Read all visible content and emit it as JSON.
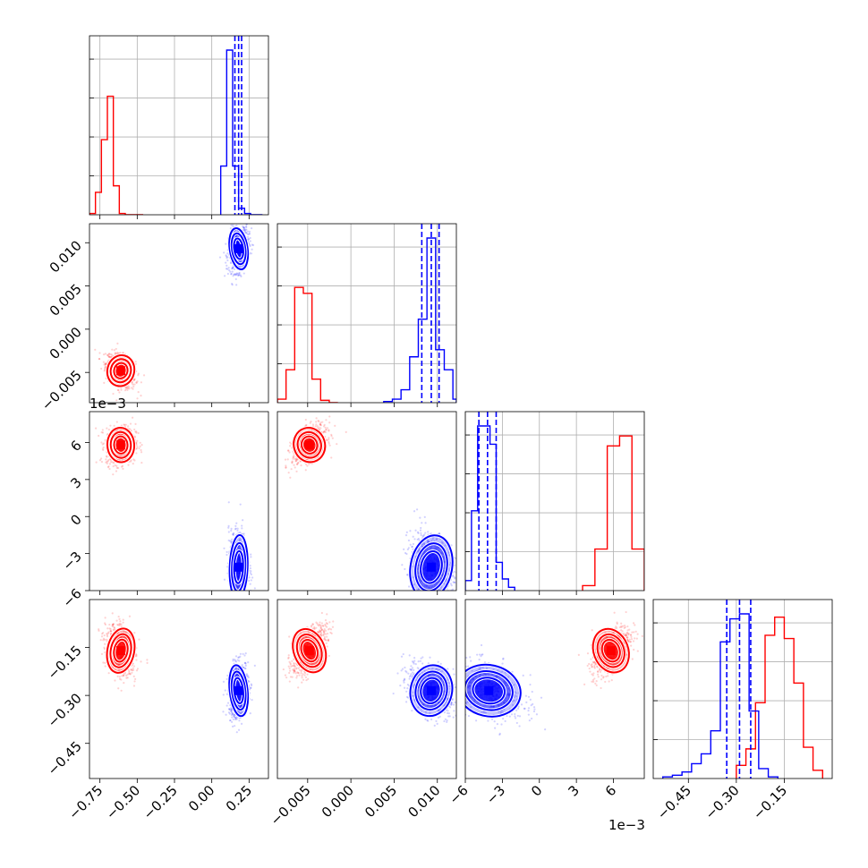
{
  "chart_data": {
    "type": "corner",
    "parameters": [
      {
        "range": [
          -0.82,
          0.38
        ],
        "ticks": [
          -0.75,
          -0.5,
          -0.25,
          0.0,
          0.25
        ],
        "labels": [
          "−0.75",
          "−0.50",
          "−0.25",
          "0.00",
          "0.25"
        ],
        "offset": ""
      },
      {
        "range": [
          -0.0085,
          0.0122
        ],
        "ticks": [
          -0.005,
          0.0,
          0.005,
          0.01
        ],
        "labels": [
          "−0.005",
          "0.000",
          "0.005",
          "0.010"
        ],
        "offset": ""
      },
      {
        "range": [
          -0.006,
          0.0085
        ],
        "ticks": [
          -0.006,
          -0.003,
          0.0,
          0.003,
          0.006
        ],
        "labels": [
          "−6",
          "−3",
          "0",
          "3",
          "6"
        ],
        "offset": "1e−3"
      },
      {
        "range": [
          -0.56,
          0.0
        ],
        "ticks": [
          -0.45,
          -0.3,
          -0.15
        ],
        "labels": [
          "−0.45",
          "−0.30",
          "−0.15"
        ],
        "offset": ""
      }
    ],
    "series": [
      {
        "color": "#ff0000",
        "center": [
          -0.61,
          -0.0048,
          0.0058,
          -0.16
        ],
        "spread": [
          0.045,
          0.0009,
          0.0007,
          0.035
        ]
      },
      {
        "color": "#0000ff",
        "center": [
          0.18,
          0.0093,
          -0.0041,
          -0.285
        ],
        "spread": [
          0.03,
          0.0012,
          0.0013,
          0.04
        ]
      }
    ],
    "quantile_lines_blue": [
      [
        0.155,
        0.18,
        0.2
      ],
      [
        0.0082,
        0.0093,
        0.0102
      ],
      [
        -0.0049,
        -0.0042,
        -0.0035
      ],
      [
        -0.33,
        -0.29,
        -0.255
      ]
    ],
    "histograms_1d": [
      {
        "red": {
          "edges": [
            -0.82,
            -0.78,
            -0.74,
            -0.7,
            -0.66,
            -0.62,
            -0.58,
            -0.54,
            -0.5,
            -0.46
          ],
          "counts": [
            0.01,
            0.17,
            0.57,
            0.9,
            0.22,
            0.01,
            0.0,
            0.0,
            0.0
          ]
        },
        "blue": {
          "edges": [
            0.06,
            0.1,
            0.14,
            0.18,
            0.22,
            0.26,
            0.3,
            0.34
          ],
          "counts": [
            0.37,
            1.25,
            0.37,
            0.05,
            0.01,
            0.0,
            0.0
          ]
        }
      },
      {
        "red": {
          "edges": [
            -0.0085,
            -0.0075,
            -0.0065,
            -0.0055,
            -0.0045,
            -0.0035,
            -0.0025,
            -0.0015
          ],
          "counts": [
            0.03,
            0.28,
            0.98,
            0.93,
            0.2,
            0.02,
            0.0
          ]
        },
        "blue": {
          "edges": [
            0.0038,
            0.0048,
            0.0058,
            0.0068,
            0.0078,
            0.0088,
            0.0098,
            0.0108,
            0.0118,
            0.0122
          ],
          "counts": [
            0.01,
            0.03,
            0.11,
            0.39,
            0.71,
            1.4,
            0.45,
            0.28,
            0.03
          ]
        }
      },
      {
        "red": {
          "edges": [
            0.0035,
            0.0045,
            0.0055,
            0.0065,
            0.0075,
            0.0085
          ],
          "counts": [
            0.03,
            0.25,
            0.87,
            0.93,
            0.25
          ]
        },
        "blue": {
          "edges": [
            -0.006,
            -0.0055,
            -0.005,
            -0.0045,
            -0.004,
            -0.0035,
            -0.003,
            -0.0025,
            -0.002
          ],
          "counts": [
            0.06,
            0.48,
            0.99,
            0.99,
            0.88,
            0.17,
            0.07,
            0.02
          ]
        }
      },
      {
        "red": {
          "edges": [
            -0.3,
            -0.27,
            -0.24,
            -0.21,
            -0.18,
            -0.15,
            -0.12,
            -0.09,
            -0.06,
            -0.03
          ],
          "counts": [
            0.08,
            0.18,
            0.46,
            0.87,
            0.98,
            0.85,
            0.58,
            0.19,
            0.05
          ]
        },
        "blue": {
          "edges": [
            -0.53,
            -0.5,
            -0.47,
            -0.44,
            -0.41,
            -0.38,
            -0.35,
            -0.32,
            -0.29,
            -0.26,
            -0.23,
            -0.2,
            -0.17
          ],
          "counts": [
            0.01,
            0.02,
            0.04,
            0.09,
            0.15,
            0.29,
            0.83,
            0.97,
            1.0,
            0.41,
            0.06,
            0.01
          ]
        }
      }
    ],
    "grid": true,
    "title": "",
    "xlabel": "",
    "ylabel": ""
  }
}
